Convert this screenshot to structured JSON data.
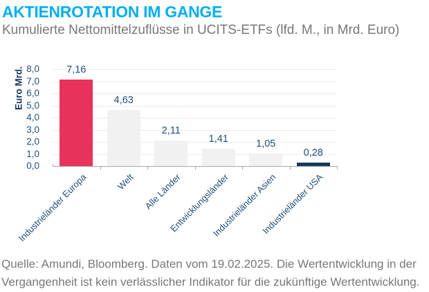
{
  "header": {
    "title": "AKTIENROTATION IM GANGE",
    "subtitle": "Kumulierte Nettomittelzuflüsse in UCITS-ETFs (lfd. M., in Mrd. Euro)"
  },
  "chart_data": {
    "type": "bar",
    "title": "",
    "xlabel": "",
    "ylabel": "Euro Mrd.",
    "ylim": [
      0,
      8
    ],
    "ytick_step": 1,
    "ytick_labels": [
      "0,0",
      "1,0",
      "2,0",
      "3,0",
      "4,0",
      "5,0",
      "6,0",
      "7,0",
      "8,0"
    ],
    "grid": true,
    "legend": "none",
    "categories": [
      "Industrieländer Europa",
      "Welt",
      "Alle Länder",
      "Entwicklungsländer",
      "Industrieländer Asien",
      "Industrieländer USA"
    ],
    "values": [
      7.16,
      4.63,
      2.11,
      1.41,
      1.05,
      0.28
    ],
    "value_labels": [
      "7,16",
      "4,63",
      "2,11",
      "1,41",
      "1,05",
      "0,28"
    ],
    "bar_colors": [
      "#E7335B",
      "#F1F1F1",
      "#F1F1F1",
      "#F1F1F1",
      "#F1F1F1",
      "#143A5E"
    ]
  },
  "footer": {
    "lines": [
      "Quelle: Amundi, Bloomberg. Daten vom 19.02.2025. Die Wertentwicklung in der",
      "Vergangenheit ist kein verlässlicher Indikator für die zukünftige Wertentwicklung."
    ]
  },
  "colors": {
    "title_accent": "#00AFF0",
    "text_gray": "#76777A",
    "chart_text": "#1F4E79",
    "bar_highlight": "#E7335B",
    "bar_neutral": "#F1F1F1",
    "bar_dark": "#143A5E",
    "axis": "#A8A8A8",
    "gridline": "#ECECEC"
  }
}
